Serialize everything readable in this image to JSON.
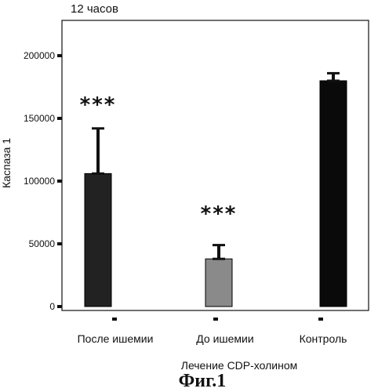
{
  "chart_data": {
    "type": "bar",
    "title": "12 часов",
    "ylabel": "Каспаза 1",
    "xlabel": "Лечение CDP-холином",
    "categories": [
      "После ишемии",
      "До ишемии",
      "Контроль"
    ],
    "values": [
      106000,
      38000,
      180000
    ],
    "error_upper": [
      142000,
      49000,
      186000
    ],
    "bar_colors": [
      "#222222",
      "#8a8a8a",
      "#0a0a0a"
    ],
    "yticks": [
      0,
      50000,
      100000,
      150000,
      200000
    ],
    "ytick_labels": [
      "0",
      "50000",
      "100000",
      "150000",
      "200000"
    ],
    "ylim": [
      0,
      218000
    ],
    "annotations": [
      {
        "category": "После ишемии",
        "text": "***",
        "y": 162000
      },
      {
        "category": "До ишемии",
        "text": "***",
        "y": 75000
      }
    ],
    "grid": false,
    "legend": "none"
  },
  "figure_caption": "Фиг.1"
}
